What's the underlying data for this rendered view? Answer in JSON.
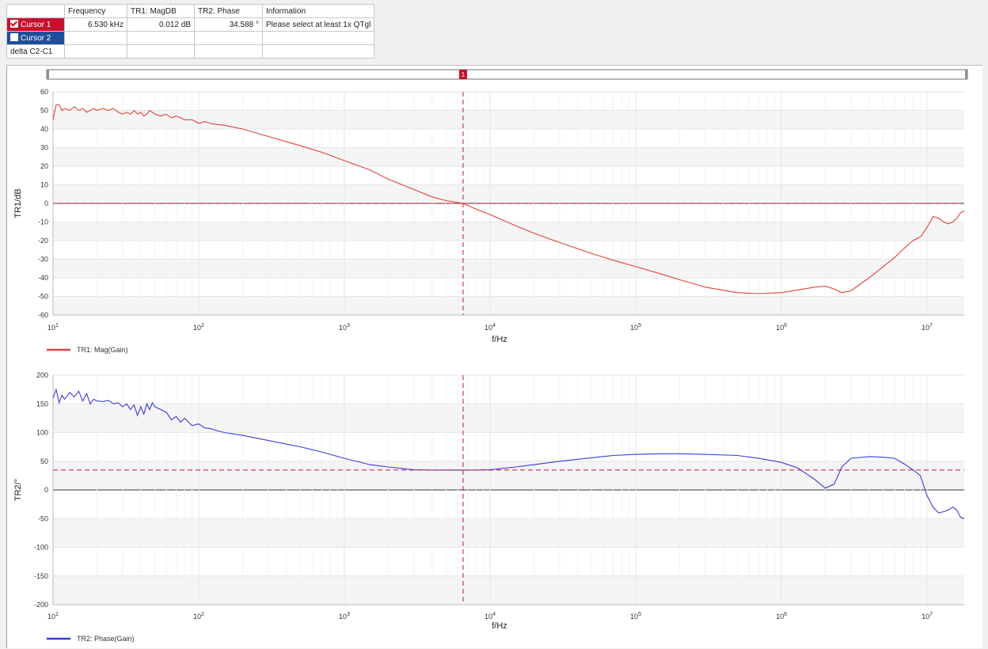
{
  "cursor_table": {
    "headers": [
      "",
      "Frequency",
      "TR1: MagDB",
      "TR2: Phase",
      "Information"
    ],
    "rows": [
      {
        "label": "Cursor 1",
        "checked": true,
        "frequency": "6.530 kHz",
        "mag": "0.012 dB",
        "phase": "34.588 °",
        "info": "Please select at least 1x QTgl"
      },
      {
        "label": "Cursor 2",
        "checked": false,
        "frequency": "",
        "mag": "",
        "phase": "",
        "info": ""
      },
      {
        "label": "delta C2-C1",
        "frequency": "",
        "mag": "",
        "phase": "",
        "info": ""
      }
    ]
  },
  "slider": {
    "marker_label": "1"
  },
  "colors": {
    "cursor": "#c8102e",
    "mag": "#e0443a",
    "phase": "#3a3adb",
    "grid": "#e6e6e6",
    "band": "#f5f5f5"
  },
  "chart_data": [
    {
      "type": "line",
      "xscale": "log",
      "xlim": [
        10,
        18000000
      ],
      "ylim": [
        -60,
        60
      ],
      "ylabel": "TR1/dB",
      "xlabel": "f/Hz",
      "yticks": [
        60,
        50,
        40,
        30,
        20,
        10,
        0,
        -10,
        -20,
        -30,
        -40,
        -50,
        -60
      ],
      "xticks": [
        {
          "value": 10,
          "base": "10",
          "exp": "1"
        },
        {
          "value": 100,
          "base": "10",
          "exp": "2"
        },
        {
          "value": 1000,
          "base": "10",
          "exp": "3"
        },
        {
          "value": 10000,
          "base": "10",
          "exp": "4"
        },
        {
          "value": 100000,
          "base": "10",
          "exp": "5"
        },
        {
          "value": 1000000,
          "base": "10",
          "exp": "6"
        },
        {
          "value": 10000000,
          "base": "10",
          "exp": "7"
        }
      ],
      "cursor_x": 6530,
      "cursor_y": 0.012,
      "legend": "TR1: Mag(Gain)",
      "series": [
        {
          "name": "TR1: Mag(Gain)",
          "x": [
            10,
            10.5,
            11,
            11.5,
            12,
            13,
            14,
            15,
            16,
            17,
            18,
            19,
            20,
            22,
            24,
            26,
            28,
            30,
            32,
            34,
            36,
            38,
            40,
            42,
            44,
            46,
            48,
            50,
            55,
            60,
            65,
            70,
            75,
            80,
            90,
            100,
            110,
            120,
            130,
            150,
            200,
            300,
            500,
            700,
            1000,
            1500,
            2000,
            3000,
            4000,
            5000,
            6530,
            8000,
            10000,
            15000,
            20000,
            30000,
            50000,
            70000,
            100000,
            150000,
            200000,
            300000,
            500000,
            700000,
            1000000,
            1300000,
            1700000,
            2000000,
            2300000,
            2600000,
            3000000,
            4000000,
            5000000,
            6000000,
            7000000,
            8000000,
            9000000,
            10000000,
            11000000,
            12000000,
            13000000,
            14000000,
            15000000,
            16000000,
            17000000,
            18000000
          ],
          "y": [
            45,
            53,
            53,
            50,
            51,
            50,
            52,
            50,
            51,
            49,
            50,
            51,
            50,
            51,
            50,
            51,
            49,
            48,
            49,
            48,
            50,
            48,
            49,
            47,
            48,
            50,
            49,
            48,
            47,
            48,
            46,
            47,
            46,
            45,
            45,
            43,
            44,
            43,
            42.5,
            42,
            40,
            36,
            31,
            27.5,
            23,
            18,
            13,
            7.5,
            3.5,
            1.5,
            0.012,
            -3,
            -6,
            -12,
            -16,
            -21,
            -27,
            -30.5,
            -34,
            -38,
            -41,
            -45,
            -48,
            -48.5,
            -48,
            -46.5,
            -45,
            -44.5,
            -46,
            -48,
            -47,
            -40,
            -34,
            -29,
            -24,
            -20,
            -18,
            -13,
            -7,
            -8,
            -10,
            -11,
            -10,
            -8,
            -5,
            -4
          ]
        }
      ]
    },
    {
      "type": "line",
      "xscale": "log",
      "xlim": [
        10,
        18000000
      ],
      "ylim": [
        -200,
        200
      ],
      "ylabel": "TR2/°",
      "xlabel": "f/Hz",
      "yticks": [
        200,
        150,
        100,
        50,
        0,
        -50,
        -100,
        -150,
        -200
      ],
      "xticks": [
        {
          "value": 10,
          "base": "10",
          "exp": "1"
        },
        {
          "value": 100,
          "base": "10",
          "exp": "2"
        },
        {
          "value": 1000,
          "base": "10",
          "exp": "3"
        },
        {
          "value": 10000,
          "base": "10",
          "exp": "4"
        },
        {
          "value": 100000,
          "base": "10",
          "exp": "5"
        },
        {
          "value": 1000000,
          "base": "10",
          "exp": "6"
        },
        {
          "value": 10000000,
          "base": "10",
          "exp": "7"
        }
      ],
      "cursor_x": 6530,
      "cursor_y": 34.588,
      "legend": "TR2: Phase(Gain)",
      "series": [
        {
          "name": "TR2: Phase(Gain)",
          "x": [
            10,
            10.5,
            11,
            11.5,
            12,
            13,
            14,
            15,
            16,
            17,
            18,
            19,
            20,
            22,
            24,
            26,
            28,
            30,
            32,
            34,
            36,
            38,
            40,
            42,
            44,
            46,
            48,
            50,
            55,
            60,
            65,
            70,
            75,
            80,
            90,
            100,
            110,
            120,
            130,
            150,
            200,
            300,
            500,
            700,
            1000,
            1500,
            2000,
            3000,
            4000,
            5000,
            6530,
            8000,
            10000,
            15000,
            20000,
            30000,
            50000,
            70000,
            100000,
            150000,
            200000,
            300000,
            500000,
            700000,
            1000000,
            1300000,
            1700000,
            2000000,
            2300000,
            2600000,
            3000000,
            4000000,
            5000000,
            6000000,
            7000000,
            8000000,
            9000000,
            10000000,
            11000000,
            12000000,
            13000000,
            14000000,
            15000000,
            16000000,
            17000000,
            18000000
          ],
          "y": [
            160,
            175,
            152,
            165,
            158,
            170,
            162,
            172,
            155,
            168,
            150,
            158,
            155,
            154,
            156,
            150,
            152,
            145,
            150,
            140,
            148,
            130,
            145,
            132,
            150,
            140,
            152,
            145,
            140,
            135,
            122,
            128,
            118,
            125,
            112,
            115,
            108,
            107,
            104,
            100,
            95,
            86,
            75,
            66,
            55,
            44,
            40,
            35,
            34.5,
            34.6,
            34.588,
            34.5,
            35,
            40,
            44,
            50,
            56,
            60,
            62,
            63,
            63,
            62,
            60,
            55,
            48,
            38,
            18,
            3,
            10,
            40,
            55,
            58,
            57,
            55,
            45,
            35,
            25,
            -10,
            -30,
            -40,
            -38,
            -35,
            -30,
            -35,
            -48,
            -50
          ]
        }
      ]
    }
  ]
}
